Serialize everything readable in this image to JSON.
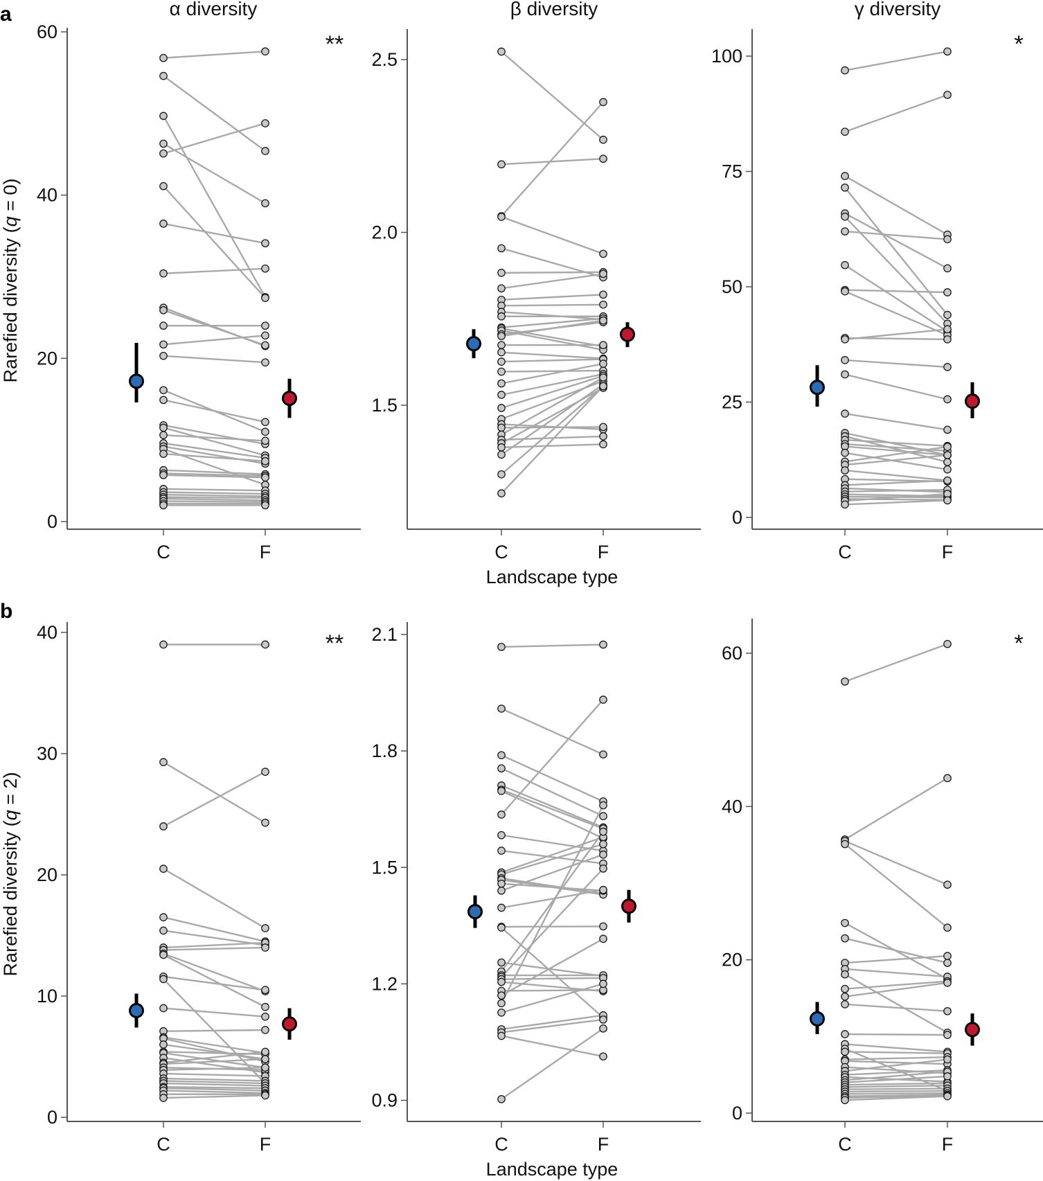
{
  "figure": {
    "rows": [
      {
        "letter": "a",
        "ylabel_prefix": "Rarefied diversity (",
        "ylabel_q": "q",
        "ylabel_suffix": " = 0)"
      },
      {
        "letter": "b",
        "ylabel_prefix": "Rarefied diversity (",
        "ylabel_q": "q",
        "ylabel_suffix": " = 2)"
      }
    ],
    "column_titles": [
      "α diversity",
      "β diversity",
      "γ diversity"
    ],
    "xlabel": "Landscape type",
    "colors": {
      "C_mean": "#2A6DB5",
      "F_mean": "#C0192E",
      "point_fill": "#C8C8C8",
      "point_stroke": "#1a1a1a",
      "pair_line": "#A9A9A9",
      "axis": "#555555"
    }
  },
  "chart_data": [
    {
      "type": "scatter",
      "id": "a-alpha",
      "row": "a",
      "title": "α diversity",
      "ylabel": "Rarefied diversity (q = 0)",
      "xlabel": "",
      "categories": [
        "C",
        "F"
      ],
      "ylim": [
        0,
        60
      ],
      "yticks": [
        0,
        20,
        40,
        60
      ],
      "significance": "**",
      "pairs": [
        [
          56.8,
          57.6
        ],
        [
          54.6,
          45.4
        ],
        [
          49.7,
          27.5
        ],
        [
          46.3,
          39.0
        ],
        [
          45.1,
          48.8
        ],
        [
          41.1,
          27.4
        ],
        [
          36.5,
          34.1
        ],
        [
          30.4,
          31.0
        ],
        [
          26.2,
          21.5
        ],
        [
          25.9,
          21.6
        ],
        [
          24.0,
          24.0
        ],
        [
          21.7,
          22.8
        ],
        [
          20.3,
          19.5
        ],
        [
          16.1,
          11.0
        ],
        [
          14.9,
          12.2
        ],
        [
          11.8,
          9.5
        ],
        [
          11.5,
          8.1
        ],
        [
          10.6,
          9.9
        ],
        [
          9.6,
          7.8
        ],
        [
          9.2,
          7.1
        ],
        [
          8.9,
          4.5
        ],
        [
          8.3,
          7.4
        ],
        [
          6.3,
          5.8
        ],
        [
          5.9,
          5.6
        ],
        [
          5.7,
          5.4
        ],
        [
          4.0,
          3.8
        ],
        [
          3.6,
          3.4
        ],
        [
          3.3,
          3.1
        ],
        [
          3.0,
          2.9
        ],
        [
          2.8,
          2.6
        ],
        [
          2.5,
          2.4
        ],
        [
          2.2,
          2.2
        ],
        [
          2.0,
          2.0
        ]
      ],
      "means": {
        "C": {
          "mean": 17.2,
          "lo": 14.6,
          "hi": 21.9
        },
        "F": {
          "mean": 15.1,
          "lo": 12.7,
          "hi": 17.5
        }
      }
    },
    {
      "type": "scatter",
      "id": "a-beta",
      "row": "a",
      "title": "β diversity",
      "ylabel": "",
      "xlabel": "Landscape type",
      "categories": [
        "C",
        "F"
      ],
      "ylim": [
        1.3,
        2.6
      ],
      "yticks": [
        1.5,
        2.0,
        2.5
      ],
      "significance": "",
      "pairs": [
        [
          2.523,
          2.268
        ],
        [
          2.197,
          2.213
        ],
        [
          2.047,
          2.377
        ],
        [
          2.045,
          1.938
        ],
        [
          1.954,
          1.87
        ],
        [
          1.883,
          1.885
        ],
        [
          1.838,
          1.88
        ],
        [
          1.805,
          1.82
        ],
        [
          1.788,
          1.791
        ],
        [
          1.77,
          1.748
        ],
        [
          1.757,
          1.757
        ],
        [
          1.725,
          1.751
        ],
        [
          1.722,
          1.67
        ],
        [
          1.716,
          1.66
        ],
        [
          1.705,
          1.74
        ],
        [
          1.7,
          1.745
        ],
        [
          1.674,
          1.674
        ],
        [
          1.653,
          1.635
        ],
        [
          1.626,
          1.633
        ],
        [
          1.597,
          1.6
        ],
        [
          1.563,
          1.62
        ],
        [
          1.53,
          1.59
        ],
        [
          1.492,
          1.585
        ],
        [
          1.46,
          1.57
        ],
        [
          1.445,
          1.43
        ],
        [
          1.435,
          1.437
        ],
        [
          1.415,
          1.58
        ],
        [
          1.4,
          1.41
        ],
        [
          1.39,
          1.55
        ],
        [
          1.378,
          1.387
        ],
        [
          1.357,
          1.56
        ],
        [
          1.3,
          1.555
        ],
        [
          1.245,
          1.555
        ]
      ],
      "means": {
        "C": {
          "mean": 1.678,
          "lo": 1.636,
          "hi": 1.72
        },
        "F": {
          "mean": 1.705,
          "lo": 1.668,
          "hi": 1.74
        }
      }
    },
    {
      "type": "scatter",
      "id": "a-gamma",
      "row": "a",
      "title": "γ diversity",
      "ylabel": "",
      "xlabel": "",
      "categories": [
        "C",
        "F"
      ],
      "ylim": [
        0,
        106
      ],
      "yticks": [
        0,
        25,
        50,
        75,
        100
      ],
      "significance": "*",
      "pairs": [
        [
          96.9,
          101.0
        ],
        [
          83.6,
          91.6
        ],
        [
          74.0,
          61.3
        ],
        [
          71.5,
          43.9
        ],
        [
          65.9,
          54.0
        ],
        [
          65.2,
          42.0
        ],
        [
          62.0,
          60.3
        ],
        [
          54.7,
          40.3
        ],
        [
          49.3,
          48.8
        ],
        [
          49.0,
          39.5
        ],
        [
          38.9,
          38.6
        ],
        [
          38.6,
          40.8
        ],
        [
          34.1,
          32.6
        ],
        [
          31.0,
          25.6
        ],
        [
          22.5,
          19.0
        ],
        [
          18.3,
          13.5
        ],
        [
          17.6,
          12.0
        ],
        [
          16.8,
          15.5
        ],
        [
          15.9,
          14.4
        ],
        [
          15.4,
          13.5
        ],
        [
          14.0,
          10.4
        ],
        [
          12.1,
          15.3
        ],
        [
          11.4,
          13.5
        ],
        [
          10.2,
          8.0
        ],
        [
          8.3,
          7.8
        ],
        [
          7.0,
          8.0
        ],
        [
          6.3,
          5.5
        ],
        [
          5.6,
          6.0
        ],
        [
          5.0,
          4.6
        ],
        [
          4.5,
          4.3
        ],
        [
          4.0,
          3.8
        ],
        [
          3.6,
          5.1
        ],
        [
          2.8,
          3.7
        ]
      ],
      "means": {
        "C": {
          "mean": 28.2,
          "lo": 24.0,
          "hi": 33.0
        },
        "F": {
          "mean": 25.2,
          "lo": 21.5,
          "hi": 29.3
        }
      }
    },
    {
      "type": "scatter",
      "id": "b-alpha",
      "row": "b",
      "title": "",
      "ylabel": "Rarefied diversity (q = 2)",
      "xlabel": "",
      "categories": [
        "C",
        "F"
      ],
      "ylim": [
        0,
        40.5
      ],
      "yticks": [
        0,
        10,
        20,
        30,
        40
      ],
      "significance": "**",
      "pairs": [
        [
          39.0,
          39.0
        ],
        [
          29.3,
          24.3
        ],
        [
          24.0,
          28.5
        ],
        [
          20.5,
          15.6
        ],
        [
          16.5,
          14.5
        ],
        [
          15.4,
          14.2
        ],
        [
          14.0,
          14.4
        ],
        [
          13.8,
          14.0
        ],
        [
          13.5,
          10.4
        ],
        [
          13.4,
          9.1
        ],
        [
          11.6,
          10.5
        ],
        [
          11.4,
          2.8
        ],
        [
          9.0,
          8.3
        ],
        [
          7.1,
          7.2
        ],
        [
          6.6,
          5.3
        ],
        [
          6.5,
          4.6
        ],
        [
          6.0,
          4.8
        ],
        [
          5.4,
          5.2
        ],
        [
          5.3,
          4.1
        ],
        [
          4.9,
          3.7
        ],
        [
          4.5,
          5.4
        ],
        [
          4.4,
          4.8
        ],
        [
          4.1,
          3.9
        ],
        [
          3.9,
          4.1
        ],
        [
          3.6,
          3.4
        ],
        [
          3.2,
          3.0
        ],
        [
          3.0,
          2.8
        ],
        [
          2.8,
          2.6
        ],
        [
          2.5,
          2.4
        ],
        [
          2.4,
          2.2
        ],
        [
          2.2,
          2.0
        ],
        [
          1.9,
          1.9
        ],
        [
          1.6,
          1.8
        ]
      ],
      "means": {
        "C": {
          "mean": 8.8,
          "lo": 7.4,
          "hi": 10.2
        },
        "F": {
          "mean": 7.7,
          "lo": 6.4,
          "hi": 9.0
        }
      }
    },
    {
      "type": "scatter",
      "id": "b-beta",
      "row": "b",
      "title": "",
      "ylabel": "",
      "xlabel": "Landscape type",
      "categories": [
        "C",
        "F"
      ],
      "ylim": [
        0.85,
        2.12
      ],
      "yticks": [
        0.9,
        1.2,
        1.5,
        1.8,
        2.1
      ],
      "significance": "",
      "pairs": [
        [
          2.068,
          2.074
        ],
        [
          1.909,
          1.791
        ],
        [
          1.789,
          1.67
        ],
        [
          1.755,
          1.632
        ],
        [
          1.711,
          1.603
        ],
        [
          1.7,
          1.6
        ],
        [
          1.697,
          1.575
        ],
        [
          1.636,
          1.932
        ],
        [
          1.583,
          1.543
        ],
        [
          1.543,
          1.51
        ],
        [
          1.487,
          1.578
        ],
        [
          1.482,
          1.56
        ],
        [
          1.472,
          1.432
        ],
        [
          1.468,
          1.43
        ],
        [
          1.458,
          1.44
        ],
        [
          1.44,
          1.533
        ],
        [
          1.396,
          1.442
        ],
        [
          1.347,
          1.348
        ],
        [
          1.345,
          1.113
        ],
        [
          1.255,
          1.22
        ],
        [
          1.232,
          1.592
        ],
        [
          1.222,
          1.222
        ],
        [
          1.218,
          1.497
        ],
        [
          1.212,
          1.215
        ],
        [
          1.205,
          1.181
        ],
        [
          1.182,
          1.184
        ],
        [
          1.17,
          1.316
        ],
        [
          1.15,
          1.66
        ],
        [
          1.126,
          1.2
        ],
        [
          1.083,
          1.119
        ],
        [
          1.075,
          1.108
        ],
        [
          1.066,
          1.013
        ],
        [
          0.903,
          1.085
        ]
      ],
      "means": {
        "C": {
          "mean": 1.386,
          "lo": 1.344,
          "hi": 1.428
        },
        "F": {
          "mean": 1.4,
          "lo": 1.358,
          "hi": 1.442
        }
      }
    },
    {
      "type": "scatter",
      "id": "b-gamma",
      "row": "b",
      "title": "",
      "ylabel": "",
      "xlabel": "",
      "categories": [
        "C",
        "F"
      ],
      "ylim": [
        0,
        64
      ],
      "yticks": [
        0,
        20,
        40,
        60
      ],
      "significance": "*",
      "pairs": [
        [
          56.3,
          61.2
        ],
        [
          35.7,
          43.7
        ],
        [
          35.5,
          29.8
        ],
        [
          35.1,
          24.2
        ],
        [
          24.8,
          17.5
        ],
        [
          22.8,
          19.6
        ],
        [
          19.6,
          20.5
        ],
        [
          18.8,
          17.8
        ],
        [
          18.1,
          10.5
        ],
        [
          16.2,
          17.2
        ],
        [
          15.2,
          17.0
        ],
        [
          14.2,
          13.3
        ],
        [
          10.3,
          10.2
        ],
        [
          9.0,
          8.0
        ],
        [
          8.4,
          2.9
        ],
        [
          8.0,
          7.8
        ],
        [
          7.0,
          7.3
        ],
        [
          6.8,
          6.4
        ],
        [
          6.0,
          5.2
        ],
        [
          5.5,
          7.0
        ],
        [
          5.0,
          5.6
        ],
        [
          4.7,
          4.1
        ],
        [
          4.3,
          5.4
        ],
        [
          4.0,
          4.8
        ],
        [
          3.7,
          3.9
        ],
        [
          3.4,
          3.6
        ],
        [
          3.1,
          3.2
        ],
        [
          2.8,
          2.9
        ],
        [
          2.5,
          2.6
        ],
        [
          2.2,
          2.4
        ],
        [
          2.0,
          2.3
        ],
        [
          1.7,
          2.2
        ]
      ],
      "means": {
        "C": {
          "mean": 12.3,
          "lo": 10.3,
          "hi": 14.5
        },
        "F": {
          "mean": 10.9,
          "lo": 8.8,
          "hi": 13.0
        }
      }
    }
  ]
}
